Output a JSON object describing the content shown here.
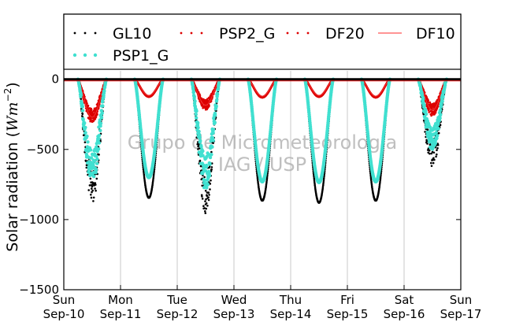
{
  "chart_data": {
    "type": "scatter",
    "ylabel_prefix": "Solar radiation (",
    "ylabel_unit": "Wm",
    "ylabel_exp": "−2",
    "ylabel_suffix": ")",
    "ylim": [
      -1500,
      60
    ],
    "yticks": [
      0,
      -500,
      -1000,
      -1500
    ],
    "ytick_labels": [
      "0",
      "−500",
      "−1000",
      "−1500"
    ],
    "xlim": [
      0,
      7
    ],
    "xtick_labels": [
      {
        "day": "Sun",
        "date": "Sep-10"
      },
      {
        "day": "Mon",
        "date": "Sep-11"
      },
      {
        "day": "Tue",
        "date": "Sep-12"
      },
      {
        "day": "Wed",
        "date": "Sep-13"
      },
      {
        "day": "Thu",
        "date": "Sep-14"
      },
      {
        "day": "Fri",
        "date": "Sep-15"
      },
      {
        "day": "Sat",
        "date": "Sep-16"
      },
      {
        "day": "Sun",
        "date": "Sep-17"
      }
    ],
    "grid": "vertical",
    "legend_position": "top",
    "watermark": [
      "Grupo de Micrometeorologia",
      "IAG / USP"
    ],
    "series": [
      {
        "name": "GL10",
        "color": "#000000",
        "marker": "dot-small",
        "daily_min": [
          -810,
          -845,
          -870,
          -865,
          -880,
          -865,
          -580
        ]
      },
      {
        "name": "PSP2_G",
        "color": "#dd0000",
        "marker": "dot-small",
        "daily_min": [
          -290,
          -125,
          -200,
          -130,
          -125,
          -130,
          -240
        ]
      },
      {
        "name": "DF20",
        "color": "#dd0000",
        "marker": "dot-small",
        "daily_min": [
          -280,
          -120,
          -190,
          -125,
          -120,
          -125,
          -230
        ]
      },
      {
        "name": "DF10",
        "color": "#ff5555",
        "marker": "line",
        "daily_min": [
          -270,
          -115,
          -185,
          -120,
          -115,
          -120,
          -220
        ]
      },
      {
        "name": "PSP1_G",
        "color": "#40e0d0",
        "marker": "dot-large",
        "daily_min": [
          -680,
          -700,
          -720,
          -730,
          -735,
          -730,
          -460
        ]
      }
    ]
  }
}
